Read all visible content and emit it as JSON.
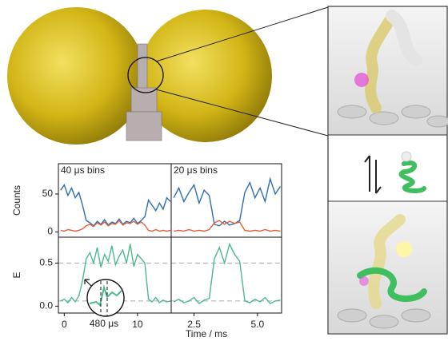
{
  "chart_data": [
    {
      "type": "line",
      "ylabel": "Counts",
      "annotation": "40 μs bins",
      "x": [
        -0.5,
        0,
        0.5,
        1,
        1.5,
        2,
        2.5,
        3,
        3.5,
        4,
        4.5,
        5,
        5.5,
        6,
        6.5,
        7,
        7.5,
        8,
        8.5,
        9,
        9.5,
        10,
        10.5,
        11,
        11.5,
        12,
        12.5,
        13,
        13.5,
        14,
        14.5
      ],
      "series": [
        {
          "color": "#2e6db5",
          "values": [
            55,
            62,
            48,
            58,
            45,
            52,
            35,
            15,
            12,
            8,
            14,
            10,
            16,
            9,
            13,
            11,
            17,
            10,
            14,
            12,
            18,
            11,
            15,
            20,
            42,
            35,
            28,
            38,
            30,
            45,
            40
          ]
        },
        {
          "color": "#e0603a",
          "values": [
            2,
            1,
            3,
            2,
            1,
            2,
            4,
            8,
            10,
            7,
            12,
            9,
            13,
            8,
            11,
            10,
            15,
            9,
            12,
            11,
            14,
            10,
            13,
            9,
            2,
            1,
            3,
            1,
            2,
            1,
            2
          ]
        }
      ],
      "xlim": [
        -0.8,
        14.6
      ],
      "ylim": [
        -7,
        90
      ],
      "yticks": [
        0,
        50
      ]
    },
    {
      "type": "line",
      "annotation": "20 μs bins",
      "x": [
        1.7,
        1.9,
        2.1,
        2.3,
        2.5,
        2.7,
        2.9,
        3.1,
        3.3,
        3.5,
        3.7,
        3.9,
        4.1,
        4.3,
        4.5,
        4.7,
        4.9,
        5.1,
        5.3,
        5.5,
        5.7,
        5.9
      ],
      "series": [
        {
          "color": "#2e6db5",
          "values": [
            45,
            58,
            40,
            52,
            62,
            38,
            55,
            48,
            10,
            8,
            14,
            9,
            11,
            15,
            52,
            65,
            45,
            58,
            40,
            70,
            50,
            60
          ]
        },
        {
          "color": "#e0603a",
          "values": [
            1,
            2,
            1,
            3,
            1,
            2,
            1,
            3,
            12,
            15,
            10,
            14,
            11,
            13,
            2,
            1,
            2,
            1,
            3,
            1,
            2,
            1
          ]
        }
      ],
      "xlim": [
        1.6,
        5.95
      ],
      "ylim": [
        -7,
        90
      ]
    },
    {
      "type": "line",
      "ylabel": "E",
      "annotation": "480 μs",
      "x": [
        -0.5,
        0,
        0.5,
        1,
        1.5,
        2,
        2.5,
        3,
        3.5,
        4,
        4.5,
        5,
        5.5,
        6,
        6.5,
        7,
        7.5,
        8,
        8.5,
        9,
        9.5,
        10,
        10.5,
        11,
        11.5,
        12,
        12.5,
        13,
        13.5,
        14,
        14.5
      ],
      "series": [
        {
          "color": "#4dba8e",
          "values": [
            0.06,
            0.08,
            0.04,
            0.1,
            0.05,
            0.12,
            0.3,
            0.55,
            0.62,
            0.5,
            0.68,
            0.45,
            0.6,
            0.52,
            0.7,
            0.48,
            0.58,
            0.65,
            0.5,
            0.72,
            0.46,
            0.6,
            0.55,
            0.5,
            0.08,
            0.05,
            0.1,
            0.04,
            0.07,
            0.05,
            0.06
          ]
        }
      ],
      "xlim": [
        -0.8,
        14.6
      ],
      "ylim": [
        -0.08,
        0.8
      ],
      "xticks": [
        0,
        10
      ],
      "yticks": [
        {
          "value": 0,
          "label": "0.0"
        },
        0.5
      ],
      "ref_lines": [
        0.5,
        0.06
      ]
    },
    {
      "type": "line",
      "xlabel": "Time / ms",
      "x": [
        1.7,
        1.9,
        2.1,
        2.3,
        2.5,
        2.7,
        2.9,
        3.1,
        3.3,
        3.5,
        3.7,
        3.9,
        4.1,
        4.3,
        4.5,
        4.7,
        4.9,
        5.1,
        5.3,
        5.5,
        5.7,
        5.9
      ],
      "series": [
        {
          "color": "#4dba8e",
          "values": [
            0.05,
            0.08,
            0.04,
            0.06,
            0.1,
            0.03,
            0.07,
            0.09,
            0.55,
            0.68,
            0.5,
            0.72,
            0.6,
            0.52,
            0.06,
            0.04,
            0.08,
            0.05,
            0.1,
            0.03,
            0.06,
            0.07
          ]
        }
      ],
      "xlim": [
        1.6,
        5.95
      ],
      "ylim": [
        -0.08,
        0.8
      ],
      "xticks": [
        2.5,
        {
          "value": 5,
          "label": "5.0"
        }
      ],
      "ref_lines": [
        0.5,
        0.06
      ]
    }
  ]
}
